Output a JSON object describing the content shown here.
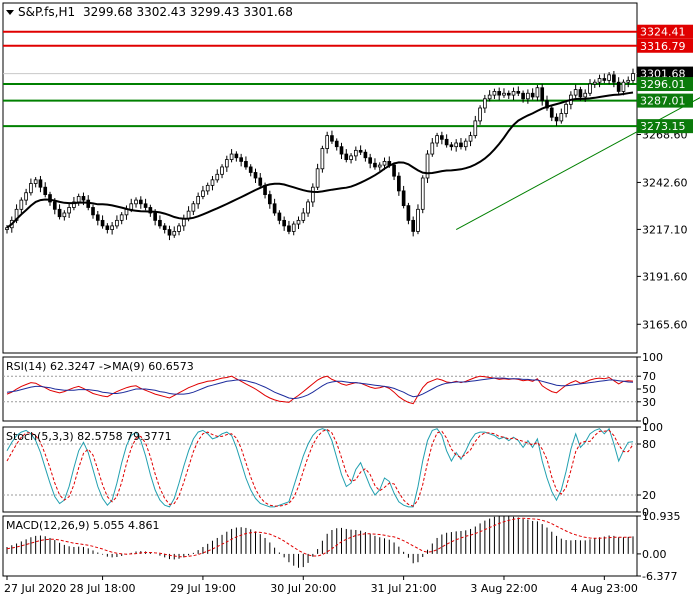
{
  "colors": {
    "frame": "#000000",
    "bull": "#000000",
    "bear": "#000000",
    "ma": "#000000",
    "red_level": "#e00000",
    "green_level": "#008000",
    "trend": "#008000",
    "price_label_bg": "#000000",
    "support_label_bg": "#0b7a0b",
    "resist_label_bg": "#e00000",
    "rsi_line": "#e00000",
    "rsi_ma": "#1c2b9c",
    "stoch_main": "#22a0b0",
    "stoch_signal": "#e00000",
    "macd_hist": "#000000",
    "macd_signal": "#e00000",
    "dotted": "#9a9a9a"
  },
  "header": {
    "symbol": "S&P.fs,H1",
    "ohlc": "3299.68 3302.43 3299.43 3301.68"
  },
  "chart_data": [
    {
      "type": "candlestick",
      "title": "S&P.fs,H1",
      "ylim": [
        3150,
        3340
      ],
      "yticks": [
        "3268.60",
        "3242.60",
        "3217.10",
        "3191.60",
        "3165.60"
      ],
      "xticks": [
        "27 Jul 2020",
        "28 Jul 18:00",
        "29 Jul 19:00",
        "30 Jul 20:00",
        "31 Jul 21:00",
        "3 Aug 22:00",
        "4 Aug 23:00"
      ],
      "closes": [
        3218,
        3222,
        3228,
        3233,
        3237,
        3242,
        3244,
        3240,
        3236,
        3232,
        3228,
        3224,
        3226,
        3229,
        3232,
        3235,
        3233,
        3229,
        3225,
        3222,
        3219,
        3217,
        3219,
        3222,
        3225,
        3228,
        3231,
        3233,
        3231,
        3229,
        3226,
        3222,
        3219,
        3217,
        3214,
        3216,
        3219,
        3223,
        3227,
        3231,
        3235,
        3238,
        3241,
        3244,
        3247,
        3251,
        3255,
        3258,
        3256,
        3254,
        3251,
        3248,
        3245,
        3241,
        3236,
        3231,
        3226,
        3222,
        3219,
        3216,
        3220,
        3222,
        3226,
        3232,
        3240,
        3250,
        3261,
        3268,
        3265,
        3262,
        3258,
        3255,
        3257,
        3260,
        3259,
        3256,
        3253,
        3251,
        3252,
        3254,
        3252,
        3246,
        3238,
        3230,
        3222,
        3216,
        3228,
        3245,
        3258,
        3264,
        3268,
        3266,
        3263,
        3262,
        3264,
        3262,
        3265,
        3268,
        3276,
        3283,
        3288,
        3290,
        3292,
        3290,
        3291,
        3290,
        3292,
        3291,
        3288,
        3291,
        3289,
        3294,
        3287,
        3283,
        3278,
        3276,
        3280,
        3285,
        3290,
        3293,
        3289,
        3291,
        3296,
        3297,
        3299,
        3298,
        3301,
        3297,
        3292,
        3297,
        3298,
        3301.68
      ],
      "ma_period": 20,
      "levels": [
        {
          "value": 3324.41,
          "label": "3324.41",
          "kind": "resistance"
        },
        {
          "value": 3316.79,
          "label": "3316.79",
          "kind": "resistance"
        },
        {
          "value": 3301.68,
          "label": "3301.68",
          "kind": "price"
        },
        {
          "value": 3296.01,
          "label": "3296.01",
          "kind": "support"
        },
        {
          "value": 3287.01,
          "label": "3287.01",
          "kind": "support"
        },
        {
          "value": 3273.15,
          "label": "3273.15",
          "kind": "support"
        }
      ],
      "trendline": {
        "from": {
          "index": 94,
          "value": 3217
        },
        "to": {
          "index": 156,
          "value": 3304
        }
      }
    },
    {
      "type": "line",
      "title": "RSI(14) 62.3247  ->MA(9) 60.6573",
      "ylim": [
        0,
        100
      ],
      "yticks": [
        "100",
        "70",
        "50",
        "30",
        "0"
      ],
      "dotted_levels": [
        70,
        30
      ],
      "series": [
        {
          "name": "RSI(14)",
          "values": [
            42,
            45,
            50,
            54,
            57,
            60,
            59,
            55,
            52,
            48,
            46,
            44,
            46,
            49,
            52,
            54,
            51,
            47,
            43,
            41,
            39,
            38,
            42,
            46,
            49,
            52,
            54,
            55,
            51,
            48,
            45,
            42,
            40,
            38,
            36,
            40,
            44,
            48,
            52,
            55,
            58,
            60,
            62,
            63,
            65,
            67,
            68,
            70,
            66,
            62,
            58,
            54,
            50,
            45,
            40,
            36,
            33,
            31,
            30,
            29,
            35,
            40,
            46,
            52,
            58,
            64,
            68,
            70,
            65,
            62,
            58,
            56,
            58,
            60,
            59,
            56,
            53,
            51,
            52,
            54,
            51,
            45,
            38,
            33,
            29,
            27,
            40,
            52,
            60,
            63,
            66,
            64,
            61,
            60,
            62,
            60,
            62,
            65,
            68,
            70,
            69,
            68,
            67,
            65,
            66,
            65,
            66,
            65,
            63,
            64,
            62,
            66,
            55,
            50,
            46,
            44,
            50,
            56,
            60,
            63,
            59,
            61,
            64,
            66,
            67,
            66,
            68,
            63,
            58,
            62,
            63,
            62.32
          ]
        },
        {
          "name": "MA(9)",
          "values": [
            45,
            46,
            47,
            49,
            51,
            53,
            54,
            54,
            53,
            52,
            50,
            49,
            48,
            48,
            48,
            49,
            49,
            49,
            48,
            47,
            45,
            44,
            43,
            43,
            44,
            46,
            48,
            50,
            50,
            50,
            49,
            48,
            46,
            45,
            43,
            42,
            42,
            42,
            43,
            45,
            48,
            51,
            54,
            56,
            58,
            60,
            62,
            63,
            64,
            64,
            63,
            61,
            59,
            56,
            53,
            49,
            45,
            42,
            39,
            36,
            35,
            36,
            38,
            41,
            45,
            50,
            55,
            59,
            61,
            62,
            62,
            61,
            60,
            60,
            59,
            58,
            57,
            56,
            55,
            54,
            53,
            51,
            48,
            45,
            41,
            38,
            39,
            42,
            46,
            50,
            54,
            57,
            59,
            60,
            61,
            61,
            61,
            62,
            63,
            64,
            65,
            66,
            67,
            67,
            67,
            66,
            66,
            66,
            65,
            65,
            64,
            64,
            62,
            60,
            58,
            56,
            55,
            55,
            56,
            57,
            58,
            59,
            60,
            61,
            62,
            63,
            64,
            64,
            63,
            62,
            61,
            60.66
          ]
        }
      ]
    },
    {
      "type": "line",
      "title": "Stoch(5,3,3) 82.5758 79.3771",
      "ylim": [
        0,
        100
      ],
      "yticks": [
        "100",
        "80",
        "20",
        "0"
      ],
      "dotted_levels": [
        80,
        20
      ],
      "series": [
        {
          "name": "Stoch main",
          "values": [
            72,
            82,
            90,
            94,
            96,
            92,
            84,
            70,
            52,
            34,
            18,
            10,
            14,
            30,
            52,
            72,
            82,
            70,
            50,
            30,
            16,
            8,
            14,
            34,
            58,
            78,
            90,
            94,
            84,
            66,
            44,
            26,
            14,
            8,
            6,
            16,
            34,
            54,
            72,
            86,
            94,
            96,
            92,
            86,
            88,
            92,
            94,
            90,
            76,
            58,
            40,
            26,
            16,
            10,
            8,
            6,
            6,
            8,
            10,
            12,
            30,
            48,
            66,
            80,
            90,
            96,
            98,
            96,
            84,
            64,
            44,
            30,
            34,
            50,
            58,
            44,
            30,
            20,
            26,
            40,
            36,
            22,
            12,
            8,
            6,
            6,
            30,
            60,
            84,
            96,
            98,
            90,
            72,
            60,
            70,
            62,
            72,
            84,
            92,
            94,
            94,
            92,
            90,
            86,
            88,
            84,
            88,
            84,
            76,
            84,
            76,
            86,
            60,
            40,
            24,
            14,
            26,
            48,
            74,
            92,
            76,
            82,
            92,
            96,
            98,
            92,
            98,
            80,
            60,
            72,
            82,
            82.58
          ]
        },
        {
          "name": "Stoch signal",
          "values": [
            60,
            70,
            80,
            88,
            93,
            93,
            90,
            82,
            68,
            52,
            34,
            20,
            14,
            18,
            32,
            52,
            69,
            74,
            67,
            50,
            32,
            18,
            12,
            18,
            35,
            57,
            75,
            87,
            89,
            81,
            65,
            45,
            28,
            16,
            9,
            10,
            19,
            35,
            53,
            71,
            84,
            92,
            94,
            91,
            89,
            89,
            91,
            92,
            87,
            75,
            58,
            41,
            27,
            17,
            11,
            8,
            7,
            7,
            8,
            10,
            17,
            30,
            48,
            65,
            79,
            89,
            95,
            97,
            93,
            81,
            64,
            46,
            36,
            38,
            47,
            51,
            44,
            31,
            25,
            29,
            34,
            33,
            23,
            14,
            9,
            7,
            14,
            32,
            58,
            80,
            93,
            95,
            87,
            74,
            67,
            64,
            68,
            73,
            83,
            90,
            93,
            93,
            92,
            89,
            88,
            86,
            87,
            85,
            83,
            81,
            79,
            82,
            74,
            62,
            41,
            26,
            21,
            29,
            49,
            71,
            81,
            83,
            83,
            90,
            95,
            95,
            96,
            90,
            79,
            71,
            71,
            79.38
          ]
        }
      ]
    },
    {
      "type": "bar",
      "title": "MACD(12,26,9) 5.055 4.861",
      "ylim": [
        -6.377,
        10.935
      ],
      "yticks": [
        "10.935",
        "0.00",
        "-6.377"
      ],
      "series": [
        {
          "name": "MACD",
          "values": [
            2.0,
            2.5,
            3.0,
            3.6,
            4.2,
            4.8,
            5.2,
            5.3,
            5.1,
            4.6,
            4.0,
            3.2,
            2.6,
            2.2,
            2.0,
            2.1,
            2.0,
            1.6,
            1.0,
            0.4,
            -0.2,
            -0.8,
            -1.0,
            -0.9,
            -0.6,
            -0.2,
            0.3,
            0.7,
            0.8,
            0.7,
            0.4,
            0.0,
            -0.5,
            -1.0,
            -1.5,
            -1.6,
            -1.4,
            -1.0,
            -0.4,
            0.3,
            1.1,
            2.0,
            2.9,
            3.8,
            4.6,
            5.5,
            6.4,
            7.2,
            7.6,
            7.7,
            7.5,
            7.1,
            6.5,
            5.7,
            4.6,
            3.3,
            1.8,
            0.4,
            -1.0,
            -2.4,
            -3.4,
            -4.0,
            -3.8,
            -2.6,
            -0.8,
            1.4,
            3.8,
            5.8,
            6.9,
            7.4,
            7.5,
            7.2,
            7.0,
            6.9,
            6.7,
            6.3,
            5.8,
            5.2,
            4.8,
            4.5,
            4.1,
            3.3,
            2.1,
            0.6,
            -1.1,
            -2.7,
            -2.4,
            -0.9,
            1.2,
            3.0,
            4.6,
            5.6,
            6.1,
            6.3,
            6.5,
            6.6,
            6.8,
            7.2,
            7.9,
            8.8,
            9.6,
            10.2,
            10.7,
            10.9,
            10.9,
            10.8,
            10.7,
            10.5,
            10.1,
            9.9,
            9.5,
            9.4,
            8.6,
            7.6,
            6.4,
            5.2,
            4.4,
            4.0,
            3.9,
            4.0,
            3.9,
            3.9,
            4.2,
            4.5,
            4.8,
            5.0,
            5.3,
            5.2,
            4.8,
            4.8,
            4.9,
            5.055
          ]
        },
        {
          "name": "Signal",
          "values": [
            1.5,
            1.7,
            2.0,
            2.3,
            2.7,
            3.1,
            3.5,
            3.9,
            4.1,
            4.2,
            4.2,
            4.0,
            3.7,
            3.4,
            3.1,
            2.9,
            2.7,
            2.5,
            2.2,
            1.8,
            1.4,
            0.9,
            0.5,
            0.2,
            0.0,
            -0.1,
            0.0,
            0.1,
            0.3,
            0.4,
            0.4,
            0.3,
            0.2,
            -0.1,
            -0.4,
            -0.6,
            -0.8,
            -0.8,
            -0.7,
            -0.5,
            -0.2,
            0.3,
            0.8,
            1.4,
            2.1,
            2.8,
            3.5,
            4.2,
            4.9,
            5.4,
            5.9,
            6.1,
            6.3,
            6.2,
            6.0,
            5.7,
            5.1,
            4.5,
            3.7,
            2.8,
            1.9,
            1.0,
            0.3,
            -0.3,
            -0.6,
            -0.6,
            -0.2,
            0.6,
            1.5,
            2.5,
            3.5,
            4.2,
            4.8,
            5.3,
            5.6,
            5.8,
            5.8,
            5.7,
            5.6,
            5.4,
            5.1,
            4.9,
            4.4,
            3.8,
            3.1,
            2.3,
            1.6,
            0.8,
            0.5,
            0.7,
            1.2,
            2.0,
            2.8,
            3.5,
            4.1,
            4.6,
            5.1,
            5.4,
            5.9,
            6.4,
            7.0,
            7.6,
            8.2,
            8.8,
            9.3,
            9.7,
            10.0,
            10.2,
            10.3,
            10.2,
            10.1,
            10.0,
            9.7,
            9.3,
            8.7,
            8.0,
            7.3,
            6.6,
            6.0,
            5.5,
            5.1,
            4.8,
            4.6,
            4.5,
            4.5,
            4.6,
            4.7,
            4.8,
            4.8,
            4.8,
            4.8,
            4.861
          ]
        }
      ]
    }
  ]
}
